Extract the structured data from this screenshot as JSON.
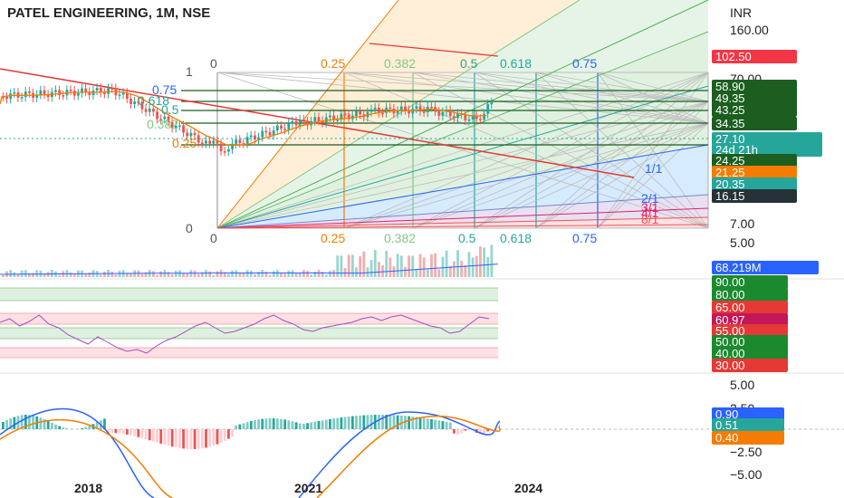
{
  "header": {
    "title": "PATEL ENGINEERING, 1M, NSE"
  },
  "chart_data": {
    "type": "candlestick",
    "currency": "INR",
    "price_axis_ticks": [
      "160.00",
      "70.00",
      "7.00",
      "5.00"
    ],
    "price_badges": [
      {
        "label": "102.50",
        "color": "#f23645",
        "text_color": "#ffffff"
      },
      {
        "label": "58.90",
        "color": "#1b5e20",
        "text_color": "#ffffff"
      },
      {
        "label": "49.35",
        "color": "#1b5e20",
        "text_color": "#ffffff"
      },
      {
        "label": "43.25",
        "color": "#1b5e20",
        "text_color": "#ffffff"
      },
      {
        "label": "34.35",
        "color": "#1b5e20",
        "text_color": "#ffffff"
      },
      {
        "label": "27.10",
        "color": "#26a69a",
        "text_color": "#ffffff"
      },
      {
        "label": "24d 21h",
        "color": "#26a69a",
        "text_color": "#ffffff"
      },
      {
        "label": "24.25",
        "color": "#1b5e20",
        "text_color": "#ffffff"
      },
      {
        "label": "21.25",
        "color": "#f57c00",
        "text_color": "#ffffff"
      },
      {
        "label": "20.35",
        "color": "#26a69a",
        "text_color": "#ffffff"
      },
      {
        "label": "16.15",
        "color": "#263238",
        "text_color": "#ffffff"
      }
    ],
    "fib_levels_top": [
      "0",
      "0.25",
      "0.382",
      "0.5",
      "0.618",
      "0.75"
    ],
    "fib_levels_bottom": [
      "0",
      "0.25",
      "0.382",
      "0.5",
      "0.618",
      "0.75"
    ],
    "fib_levels_left": [
      "1",
      "0.75",
      "0.618",
      "0.5",
      "0.382",
      "0.25",
      "0"
    ],
    "gann_fan_labels": [
      "1/1",
      "2/1",
      "3/1",
      "4/1",
      "8/1"
    ],
    "volume": {
      "badge": "68.219M",
      "badge_color": "#2962ff"
    },
    "rsi": {
      "badges": [
        {
          "label": "90.00",
          "color": "#1b8a2e"
        },
        {
          "label": "80.00",
          "color": "#1b8a2e"
        },
        {
          "label": "65.00",
          "color": "#e53935"
        },
        {
          "label": "60.97",
          "color": "#c2185b"
        },
        {
          "label": "55.00",
          "color": "#e53935"
        },
        {
          "label": "50.00",
          "color": "#1b8a2e"
        },
        {
          "label": "40.00",
          "color": "#1b8a2e"
        },
        {
          "label": "30.00",
          "color": "#e53935"
        }
      ]
    },
    "macd": {
      "axis_ticks": [
        "5.00",
        "2.50",
        "−2.50",
        "−5.00"
      ],
      "badges": [
        {
          "label": "0.90",
          "color": "#2962ff"
        },
        {
          "label": "0.51",
          "color": "#26a69a"
        },
        {
          "label": "0.40",
          "color": "#f57c00"
        }
      ]
    },
    "x_axis_labels": [
      "2018",
      "2021",
      "2024"
    ],
    "colors": {
      "up": "#26a69a",
      "down": "#ef5350",
      "fib_grid": "#9e9e9e"
    }
  }
}
